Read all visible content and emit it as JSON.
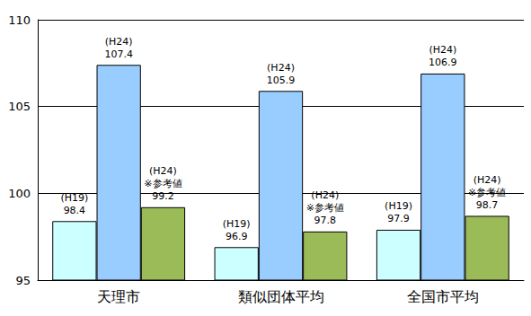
{
  "chart_data": {
    "type": "bar",
    "categories": [
      "天理市",
      "類似団体平均",
      "全国市平均"
    ],
    "series": [
      {
        "color": "#ccffff",
        "values": [
          98.4,
          96.9,
          97.9
        ],
        "value_labels": [
          "(H19)\n98.4",
          "(H19)\n96.9",
          "(H19)\n97.9"
        ]
      },
      {
        "color": "#99ccff",
        "values": [
          107.4,
          105.9,
          106.9
        ],
        "value_labels": [
          "(H24)\n107.4",
          "(H24)\n105.9",
          "(H24)\n106.9"
        ]
      },
      {
        "color": "#9bbb59",
        "values": [
          99.2,
          97.8,
          98.7
        ],
        "value_labels": [
          "(H24)\n※参考値\n99.2",
          "(H24)\n※参考値\n97.8",
          "(H24)\n※参考値\n98.7"
        ]
      }
    ],
    "ylim": [
      95,
      110
    ],
    "yticks": [
      95,
      100,
      105,
      110
    ],
    "grid": true,
    "data_labels": true
  }
}
